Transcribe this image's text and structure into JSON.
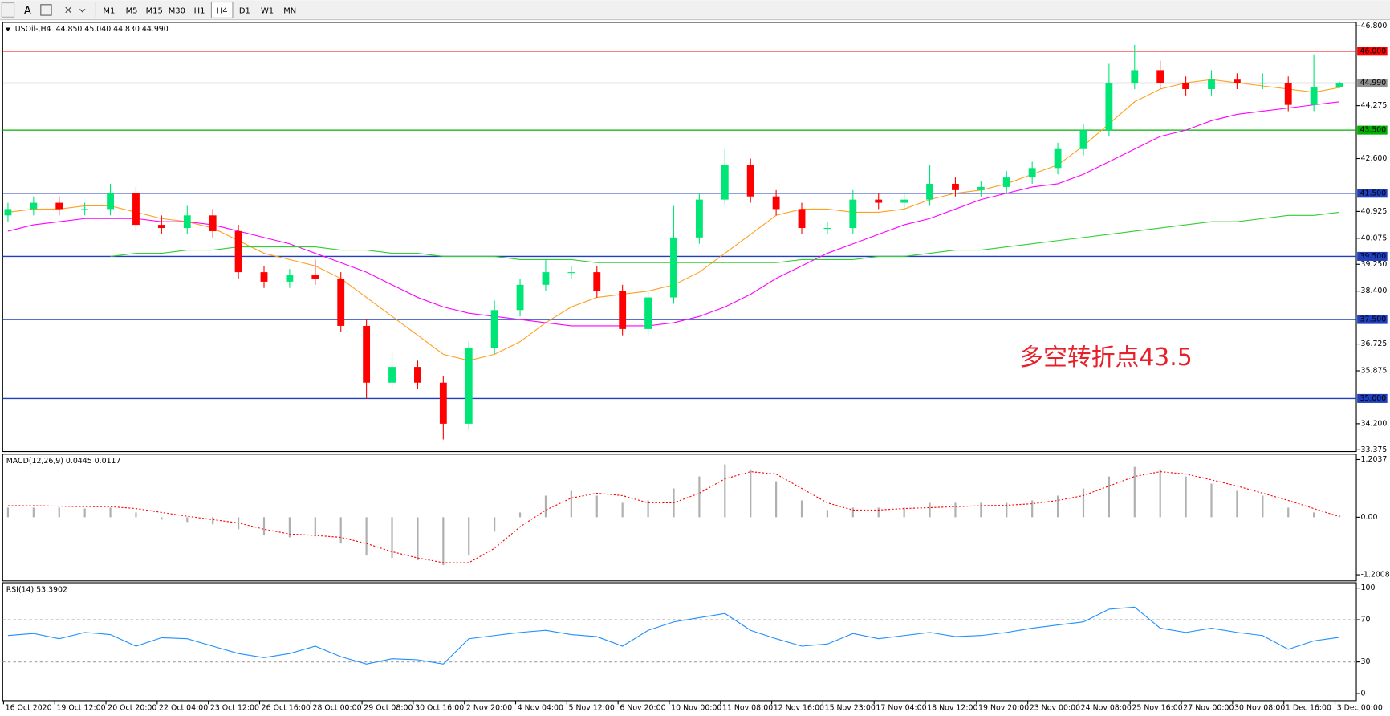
{
  "toolbar": {
    "timeframes": [
      "M1",
      "M5",
      "M15",
      "M30",
      "H1",
      "H4",
      "D1",
      "W1",
      "MN"
    ],
    "active": 5
  },
  "chart_data": [
    {
      "type": "candlestick",
      "title": "USOil-,H4",
      "quote": "44.850 45.040 44.830 44.990",
      "annotation": "多空转折点43.5",
      "categories": [
        "16 Oct 2020",
        null,
        "19 Oct 12:00",
        null,
        "20 Oct 20:00",
        null,
        "22 Oct 04:00",
        null,
        "23 Oct 12:00",
        null,
        "26 Oct 16:00",
        null,
        "28 Oct 00:00",
        null,
        "29 Oct 08:00",
        null,
        "30 Oct 16:00",
        null,
        "2 Nov 20:00",
        null,
        "4 Nov 04:00",
        null,
        "5 Nov 12:00",
        null,
        "6 Nov 20:00",
        null,
        "10 Nov 00:00",
        null,
        "11 Nov 08:00",
        null,
        "12 Nov 16:00",
        null,
        "15 Nov 23:00",
        null,
        "17 Nov 04:00",
        null,
        "18 Nov 12:00",
        null,
        "19 Nov 20:00",
        null,
        "23 Nov 00:00",
        null,
        "24 Nov 08:00",
        null,
        "25 Nov 16:00",
        null,
        "27 Nov 00:00",
        null,
        "30 Nov 08:00",
        null,
        "1 Dec 16:00",
        null,
        "3 Dec 00:00"
      ],
      "open": [
        40.8,
        41.0,
        41.2,
        41.0,
        41.0,
        41.5,
        40.5,
        40.4,
        40.8,
        40.3,
        39.0,
        38.7,
        38.9,
        38.8,
        37.3,
        35.5,
        36.0,
        35.5,
        34.2,
        36.6,
        37.8,
        38.6,
        39.0,
        39.0,
        38.4,
        37.2,
        38.2,
        40.1,
        41.3,
        42.4,
        41.4,
        41.0,
        40.4,
        40.4,
        41.3,
        41.2,
        41.3,
        41.8,
        41.6,
        41.7,
        42.0,
        42.3,
        42.9,
        43.5,
        45.0,
        45.4,
        45.0,
        44.8,
        45.1,
        45.0,
        45.0,
        44.3,
        44.85
      ],
      "high": [
        41.2,
        41.4,
        41.4,
        41.2,
        41.8,
        41.7,
        40.8,
        41.1,
        41.0,
        40.5,
        39.2,
        39.1,
        39.4,
        39.0,
        37.5,
        36.5,
        36.2,
        35.7,
        36.8,
        38.1,
        38.8,
        39.4,
        39.2,
        39.2,
        38.6,
        38.4,
        41.1,
        41.5,
        42.9,
        42.6,
        41.6,
        41.2,
        40.6,
        41.6,
        41.5,
        41.5,
        42.4,
        42.0,
        41.9,
        42.2,
        42.5,
        43.1,
        43.7,
        45.6,
        46.2,
        45.7,
        45.2,
        45.4,
        45.3,
        45.3,
        45.2,
        45.9,
        45.04
      ],
      "low": [
        40.6,
        40.8,
        40.8,
        40.8,
        40.8,
        40.3,
        40.2,
        40.2,
        40.1,
        38.8,
        38.5,
        38.5,
        38.6,
        37.1,
        35.0,
        35.3,
        35.3,
        33.7,
        34.0,
        36.4,
        37.6,
        38.4,
        38.8,
        38.2,
        37.0,
        37.0,
        38.0,
        39.9,
        41.1,
        41.2,
        40.8,
        40.2,
        40.2,
        40.2,
        41.0,
        41.0,
        41.1,
        41.4,
        41.4,
        41.5,
        41.8,
        42.1,
        42.7,
        43.3,
        44.8,
        44.8,
        44.6,
        44.6,
        44.8,
        44.8,
        44.1,
        44.1,
        44.83
      ],
      "close": [
        41.0,
        41.2,
        41.0,
        41.0,
        41.5,
        40.5,
        40.4,
        40.8,
        40.3,
        39.0,
        38.7,
        38.9,
        38.8,
        37.3,
        35.5,
        36.0,
        35.5,
        34.2,
        36.6,
        37.8,
        38.6,
        39.0,
        39.0,
        38.4,
        37.2,
        38.2,
        40.1,
        41.3,
        42.4,
        41.4,
        41.0,
        40.4,
        40.4,
        41.3,
        41.2,
        41.3,
        41.8,
        41.6,
        41.7,
        42.0,
        42.3,
        42.9,
        43.5,
        45.0,
        45.4,
        45.0,
        44.8,
        45.1,
        45.0,
        45.0,
        44.3,
        44.85,
        44.99
      ],
      "up_color": "#00e676",
      "down_color": "#ff0000",
      "series": [
        {
          "color": "#ffa020",
          "values": [
            40.9,
            41.0,
            41.0,
            41.1,
            41.1,
            40.9,
            40.7,
            40.6,
            40.4,
            40.0,
            39.6,
            39.4,
            39.2,
            38.8,
            38.2,
            37.6,
            37.0,
            36.4,
            36.2,
            36.4,
            36.8,
            37.4,
            37.9,
            38.2,
            38.3,
            38.4,
            38.6,
            39.0,
            39.6,
            40.2,
            40.8,
            41.0,
            41.0,
            40.9,
            40.9,
            41.0,
            41.3,
            41.5,
            41.6,
            41.8,
            42.1,
            42.4,
            43.0,
            43.7,
            44.4,
            44.8,
            45.0,
            45.1,
            45.0,
            44.9,
            44.8,
            44.7,
            44.85
          ]
        },
        {
          "color": "#ff00ff",
          "values": [
            40.3,
            40.5,
            40.6,
            40.7,
            40.7,
            40.7,
            40.6,
            40.6,
            40.5,
            40.3,
            40.1,
            39.9,
            39.6,
            39.3,
            39.0,
            38.6,
            38.2,
            37.9,
            37.7,
            37.6,
            37.5,
            37.4,
            37.3,
            37.3,
            37.3,
            37.3,
            37.4,
            37.6,
            37.9,
            38.3,
            38.8,
            39.2,
            39.6,
            39.9,
            40.2,
            40.5,
            40.7,
            41.0,
            41.3,
            41.5,
            41.7,
            41.8,
            42.1,
            42.5,
            42.9,
            43.3,
            43.5,
            43.8,
            44.0,
            44.1,
            44.2,
            44.3,
            44.4
          ]
        },
        {
          "color": "#32cd32",
          "values": [
            null,
            null,
            null,
            null,
            39.5,
            39.6,
            39.6,
            39.7,
            39.7,
            39.8,
            39.8,
            39.8,
            39.8,
            39.7,
            39.7,
            39.6,
            39.6,
            39.5,
            39.5,
            39.5,
            39.4,
            39.4,
            39.4,
            39.3,
            39.3,
            39.3,
            39.3,
            39.3,
            39.3,
            39.3,
            39.3,
            39.4,
            39.4,
            39.4,
            39.5,
            39.5,
            39.6,
            39.7,
            39.7,
            39.8,
            39.9,
            40.0,
            40.1,
            40.2,
            40.3,
            40.4,
            40.5,
            40.6,
            40.6,
            40.7,
            40.8,
            40.8,
            40.9
          ]
        }
      ],
      "levels": [
        {
          "value": 46,
          "label": "46.000",
          "color": "#ff0000"
        },
        {
          "value": 44.99,
          "label": "44.990",
          "color": "#909090"
        },
        {
          "value": 43.5,
          "label": "43.500",
          "color": "#00b000"
        },
        {
          "value": 41.5,
          "label": "41.500",
          "color": "#1f3fbf"
        },
        {
          "value": 39.5,
          "label": "39.500",
          "color": "#1f3fbf"
        },
        {
          "value": 37.5,
          "label": "37.500",
          "color": "#1f3fbf"
        },
        {
          "value": 35,
          "label": "35.000",
          "color": "#1f3fbf"
        }
      ],
      "ylim": [
        33.375,
        46.8
      ],
      "yticks": [
        {
          "value": 46.8,
          "label": "46.800"
        },
        44.275,
        {
          "value": 42.6,
          "label": "42.600"
        },
        40.925,
        40.075,
        {
          "value": 39.25,
          "label": "39.250"
        },
        {
          "value": 38.4,
          "label": "38.400"
        },
        36.725,
        35.875,
        {
          "value": 34.2,
          "label": "34.200"
        },
        33.375
      ]
    },
    {
      "type": "macd",
      "title": "MACD(12,26,9) 0.0445 0.0117",
      "series": [
        {
          "color": "#b0b0b0",
          "values": [
            0.2,
            0.2,
            0.2,
            0.18,
            0.2,
            0.1,
            -0.05,
            -0.1,
            -0.15,
            -0.25,
            -0.38,
            -0.42,
            -0.4,
            -0.55,
            -0.8,
            -0.85,
            -0.9,
            -1.0,
            -0.8,
            -0.3,
            0.1,
            0.45,
            0.55,
            0.45,
            0.3,
            0.35,
            0.6,
            0.85,
            1.1,
            1.0,
            0.75,
            0.35,
            0.15,
            0.2,
            0.2,
            0.2,
            0.3,
            0.3,
            0.3,
            0.3,
            0.35,
            0.45,
            0.6,
            0.85,
            1.05,
            1.0,
            0.85,
            0.7,
            0.55,
            0.45,
            0.2,
            0.1,
            0.0445
          ]
        },
        {
          "color": "#ff0000",
          "values": [
            0.24,
            0.24,
            0.23,
            0.22,
            0.22,
            0.18,
            0.1,
            0.02,
            -0.05,
            -0.12,
            -0.25,
            -0.35,
            -0.38,
            -0.42,
            -0.55,
            -0.72,
            -0.85,
            -0.95,
            -0.95,
            -0.65,
            -0.2,
            0.15,
            0.4,
            0.5,
            0.45,
            0.3,
            0.3,
            0.5,
            0.8,
            0.95,
            0.9,
            0.6,
            0.3,
            0.15,
            0.15,
            0.18,
            0.2,
            0.22,
            0.24,
            0.25,
            0.28,
            0.35,
            0.45,
            0.65,
            0.85,
            0.95,
            0.9,
            0.78,
            0.65,
            0.5,
            0.35,
            0.18,
            0.0117
          ]
        }
      ],
      "ylim": [
        -1.2008,
        1.2037
      ],
      "yticks": [
        1.2037,
        {
          "value": 0,
          "label": "0.00"
        },
        -1.2008
      ]
    },
    {
      "type": "line",
      "title": "RSI(14) 53.3902",
      "series": [
        {
          "color": "#1e90ff",
          "values": [
            55,
            57,
            52,
            58,
            56,
            45,
            53,
            52,
            45,
            38,
            34,
            38,
            45,
            35,
            28,
            33,
            32,
            28,
            52,
            55,
            58,
            60,
            56,
            54,
            45,
            60,
            68,
            72,
            76,
            60,
            52,
            45,
            47,
            57,
            52,
            55,
            58,
            54,
            55,
            58,
            62,
            65,
            68,
            80,
            82,
            62,
            58,
            62,
            58,
            55,
            42,
            50,
            53.3902
          ]
        }
      ],
      "levels": [
        70,
        30
      ],
      "ylim": [
        0,
        100
      ],
      "yticks": [
        100,
        70,
        30,
        0
      ]
    }
  ]
}
